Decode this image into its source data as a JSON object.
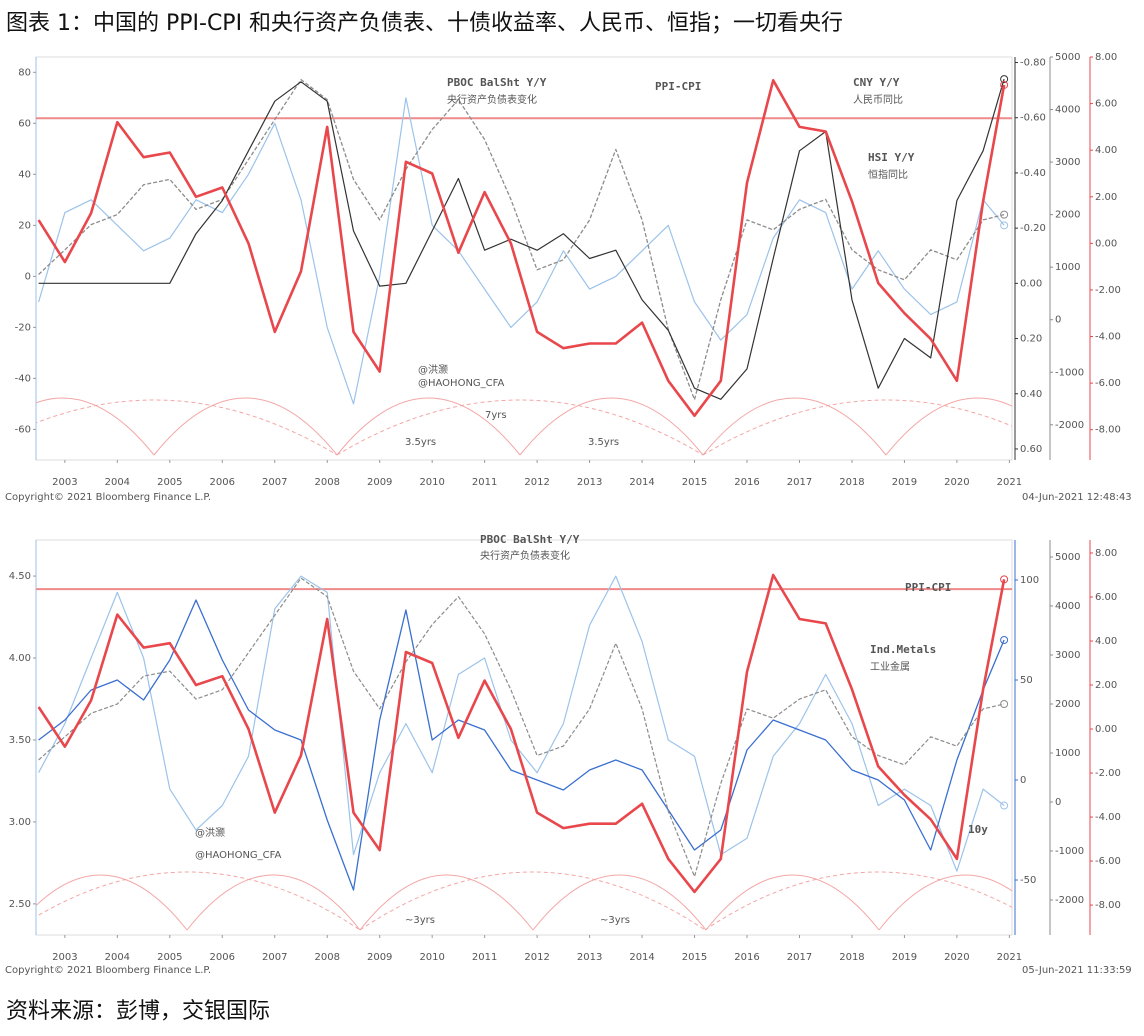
{
  "title": "图表 1：中国的 PPI-CPI 和央行资产负债表、十债收益率、人民币、恒指；一切看央行",
  "source": "资料来源：彭博，交银国际",
  "chart_data": [
    {
      "type": "line",
      "x": [
        2003,
        2003.5,
        2004,
        2004.5,
        2005,
        2005.5,
        2006,
        2006.5,
        2007,
        2007.5,
        2008,
        2008.5,
        2009,
        2009.5,
        2010,
        2010.5,
        2011,
        2011.5,
        2012,
        2012.5,
        2013,
        2013.5,
        2014,
        2014.5,
        2015,
        2015.5,
        2016,
        2016.5,
        2017,
        2017.5,
        2018,
        2018.5,
        2019,
        2019.5,
        2020,
        2020.5,
        2021,
        2021.4
      ],
      "xlim": [
        2002.95,
        2021.55
      ],
      "xticks": [
        {
          "value": 2003.5,
          "label": "2003"
        },
        {
          "value": 2004.5,
          "label": "2004"
        },
        {
          "value": 2005.5,
          "label": "2005"
        },
        {
          "value": 2006.5,
          "label": "2006"
        },
        {
          "value": 2007.5,
          "label": "2007"
        },
        {
          "value": 2008.5,
          "label": "2008"
        },
        {
          "value": 2009.5,
          "label": "2009"
        },
        {
          "value": 2010.5,
          "label": "2010"
        },
        {
          "value": 2011.5,
          "label": "2011"
        },
        {
          "value": 2012.5,
          "label": "2012"
        },
        {
          "value": 2013.5,
          "label": "2013"
        },
        {
          "value": 2014.5,
          "label": "2014"
        },
        {
          "value": 2015.5,
          "label": "2015"
        },
        {
          "value": 2016.5,
          "label": "2016"
        },
        {
          "value": 2017.5,
          "label": "2017"
        },
        {
          "value": 2018.5,
          "label": "2018"
        },
        {
          "value": 2019.5,
          "label": "2019"
        },
        {
          "value": 2020.5,
          "label": "2020"
        },
        {
          "value": 2021.5,
          "label": "2021"
        }
      ],
      "ylim": [
        -72,
        86
      ],
      "yticks": [
        -60,
        -40,
        -20,
        0,
        20,
        40,
        60,
        80
      ],
      "y2lim": [
        0.64,
        -0.82
      ],
      "y2ticks": [
        {
          "value": -0.8,
          "label": "-0.80"
        },
        {
          "value": -0.6,
          "label": "-0.60"
        },
        {
          "value": -0.4,
          "label": "-0.40"
        },
        {
          "value": -0.2,
          "label": "-0.20"
        },
        {
          "value": 0,
          "label": "0.00"
        },
        {
          "value": 0.2,
          "label": "0.20"
        },
        {
          "value": 0.4,
          "label": "0.40"
        },
        {
          "value": 0.6,
          "label": "0.60"
        }
      ],
      "y3lim": [
        -2670,
        5000
      ],
      "y3ticks": [
        5000,
        4000,
        3000,
        2000,
        1000,
        0,
        -1000,
        -2000
      ],
      "y4lim": [
        -9.3,
        8
      ],
      "y4ticks": [
        {
          "value": 8,
          "label": "8.00"
        },
        {
          "value": 6,
          "label": "6.00"
        },
        {
          "value": 4,
          "label": "4.00"
        },
        {
          "value": 2,
          "label": "2.00"
        },
        {
          "value": 0,
          "label": "0.00"
        },
        {
          "value": -2,
          "label": "-2.00"
        },
        {
          "value": -4,
          "label": "-4.00"
        },
        {
          "value": -6,
          "label": "-6.00"
        },
        {
          "value": -8,
          "label": "-8.00"
        }
      ],
      "reference_line": {
        "value": 62,
        "color": "#f08a8a"
      },
      "series": [
        {
          "name": "HSI Y/Y",
          "color": "#9cc3ea",
          "axis": "y",
          "values": [
            -10,
            25,
            30,
            20,
            10,
            15,
            30,
            25,
            40,
            60,
            30,
            -20,
            -50,
            0,
            70,
            20,
            10,
            -5,
            -20,
            -10,
            10,
            -5,
            0,
            10,
            20,
            -10,
            -25,
            -15,
            15,
            30,
            25,
            -5,
            10,
            -5,
            -15,
            -10,
            30,
            20
          ]
        },
        {
          "name": "PBOC BalSht Y/Y",
          "color": "#8c8c8c",
          "axis": "y3",
          "style": "dashed",
          "values": [
            860,
            1330,
            1810,
            2000,
            2570,
            2670,
            2100,
            2290,
            3050,
            3810,
            4570,
            4190,
            2670,
            1900,
            2860,
            3620,
            4190,
            3430,
            2290,
            950,
            1140,
            1900,
            3240,
            1900,
            -190,
            -1520,
            380,
            1900,
            1710,
            2100,
            2290,
            1330,
            950,
            760,
            1330,
            1140,
            1900,
            2000
          ]
        },
        {
          "name": "CNY Y/Y",
          "color": "#333333",
          "axis": "y2",
          "values": [
            0,
            0,
            0,
            0,
            0,
            0,
            -0.18,
            -0.3,
            -0.48,
            -0.66,
            -0.73,
            -0.66,
            -0.19,
            0.01,
            0,
            -0.19,
            -0.38,
            -0.12,
            -0.16,
            -0.12,
            -0.18,
            -0.09,
            -0.12,
            0.06,
            0.17,
            0.38,
            0.42,
            0.31,
            -0.09,
            -0.48,
            -0.55,
            0.06,
            0.38,
            0.2,
            0.27,
            -0.3,
            -0.48,
            -0.74
          ]
        },
        {
          "name": "PPI-CPI",
          "color": "#e8474c",
          "axis": "y4",
          "values": [
            1.0,
            -0.8,
            1.3,
            5.2,
            3.7,
            3.9,
            2.0,
            2.4,
            0,
            -3.8,
            -1.2,
            5.0,
            -3.8,
            -5.5,
            3.5,
            3.0,
            -0.4,
            2.2,
            0,
            -3.8,
            -4.5,
            -4.3,
            -4.3,
            -3.4,
            -5.9,
            -7.4,
            -5.9,
            2.6,
            7.0,
            5.0,
            4.8,
            1.8,
            -1.7,
            -3.0,
            -4.1,
            -5.9,
            1.8,
            6.8
          ]
        }
      ],
      "annotations": [
        "央行资产负债表变化",
        "人民币同比",
        "恒指同比",
        "@洪灏",
        "@HAOHONG_CFA",
        "7yrs",
        "3.5yrs",
        "3.5yrs",
        "Copyright© 2021 Bloomberg Finance L.P.",
        "04-Jun-2021 12:48:43"
      ]
    },
    {
      "type": "line",
      "x": [
        2003,
        2003.5,
        2004,
        2004.5,
        2005,
        2005.5,
        2006,
        2006.5,
        2007,
        2007.5,
        2008,
        2008.5,
        2009,
        2009.5,
        2010,
        2010.5,
        2011,
        2011.5,
        2012,
        2012.5,
        2013,
        2013.5,
        2014,
        2014.5,
        2015,
        2015.5,
        2016,
        2016.5,
        2017,
        2017.5,
        2018,
        2018.5,
        2019,
        2019.5,
        2020,
        2020.5,
        2021,
        2021.4
      ],
      "xlim": [
        2002.95,
        2021.55
      ],
      "xticks": [
        {
          "value": 2003.5,
          "label": "2003"
        },
        {
          "value": 2004.5,
          "label": "2004"
        },
        {
          "value": 2005.5,
          "label": "2005"
        },
        {
          "value": 2006.5,
          "label": "2006"
        },
        {
          "value": 2007.5,
          "label": "2007"
        },
        {
          "value": 2008.5,
          "label": "2008"
        },
        {
          "value": 2009.5,
          "label": "2009"
        },
        {
          "value": 2010.5,
          "label": "2010"
        },
        {
          "value": 2011.5,
          "label": "2011"
        },
        {
          "value": 2012.5,
          "label": "2012"
        },
        {
          "value": 2013.5,
          "label": "2013"
        },
        {
          "value": 2014.5,
          "label": "2014"
        },
        {
          "value": 2015.5,
          "label": "2015"
        },
        {
          "value": 2016.5,
          "label": "2016"
        },
        {
          "value": 2017.5,
          "label": "2017"
        },
        {
          "value": 2018.5,
          "label": "2018"
        },
        {
          "value": 2019.5,
          "label": "2019"
        },
        {
          "value": 2020.5,
          "label": "2020"
        },
        {
          "value": 2021.5,
          "label": "2021"
        }
      ],
      "ylim": [
        2.31,
        4.72
      ],
      "yticks": [
        {
          "value": 2.5,
          "label": "2.50"
        },
        {
          "value": 3,
          "label": "3.00"
        },
        {
          "value": 3.5,
          "label": "3.50"
        },
        {
          "value": 4,
          "label": "4.00"
        },
        {
          "value": 4.5,
          "label": "4.50"
        }
      ],
      "y2lim": [
        -77.5,
        120
      ],
      "y2ticks": [
        100,
        50,
        0,
        -50
      ],
      "y3lim": [
        -2714,
        5347
      ],
      "y3ticks": [
        5000,
        4000,
        3000,
        2000,
        1000,
        0,
        -1000,
        -2000
      ],
      "y4lim": [
        -9.36,
        8.59
      ],
      "y4ticks": [
        {
          "value": 8,
          "label": "8.00"
        },
        {
          "value": 6,
          "label": "6.00"
        },
        {
          "value": 4,
          "label": "4.00"
        },
        {
          "value": 2,
          "label": "2.00"
        },
        {
          "value": 0,
          "label": "0.00"
        },
        {
          "value": -2,
          "label": "-2.00"
        },
        {
          "value": -4,
          "label": "-4.00"
        },
        {
          "value": -6,
          "label": "-6.00"
        },
        {
          "value": -8,
          "label": "-8.00"
        }
      ],
      "reference_line": {
        "value": 4.42,
        "color": "#f08a8a"
      },
      "series": [
        {
          "name": "10y",
          "color": "#9cc3ea",
          "axis": "y",
          "values": [
            3.3,
            3.6,
            4.0,
            4.4,
            4.0,
            3.2,
            2.95,
            3.1,
            3.4,
            4.3,
            4.5,
            4.4,
            2.8,
            3.3,
            3.6,
            3.3,
            3.9,
            4.0,
            3.5,
            3.3,
            3.6,
            4.2,
            4.5,
            4.1,
            3.5,
            3.4,
            2.8,
            2.9,
            3.4,
            3.6,
            3.9,
            3.6,
            3.1,
            3.2,
            3.1,
            2.7,
            3.2,
            3.1
          ]
        },
        {
          "name": "Ind.Metals",
          "color": "#3a6fd0",
          "axis": "y2",
          "values": [
            20,
            30,
            45,
            50,
            40,
            60,
            90,
            60,
            35,
            25,
            20,
            -20,
            -55,
            30,
            85,
            20,
            30,
            25,
            5,
            0,
            -5,
            5,
            10,
            5,
            -15,
            -35,
            -25,
            15,
            30,
            25,
            20,
            5,
            0,
            -10,
            -35,
            10,
            45,
            70
          ]
        },
        {
          "name": "PBOC BalSht Y/Y",
          "color": "#8c8c8c",
          "axis": "y3",
          "style": "dashed",
          "values": [
            860,
            1330,
            1810,
            2000,
            2570,
            2670,
            2100,
            2290,
            3050,
            3810,
            4570,
            4190,
            2670,
            1900,
            2860,
            3620,
            4190,
            3430,
            2290,
            950,
            1140,
            1900,
            3240,
            1900,
            -190,
            -1520,
            380,
            1900,
            1710,
            2100,
            2290,
            1330,
            950,
            760,
            1330,
            1140,
            1900,
            2000
          ]
        },
        {
          "name": "PPI-CPI",
          "color": "#e8474c",
          "axis": "y4",
          "values": [
            1.0,
            -0.8,
            1.3,
            5.2,
            3.7,
            3.9,
            2.0,
            2.4,
            0,
            -3.8,
            -1.2,
            5.0,
            -3.8,
            -5.5,
            3.5,
            3.0,
            -0.4,
            2.2,
            0,
            -3.8,
            -4.5,
            -4.3,
            -4.3,
            -3.4,
            -5.9,
            -7.4,
            -5.9,
            2.6,
            7.0,
            5.0,
            4.8,
            1.8,
            -1.7,
            -3.0,
            -4.1,
            -5.9,
            1.8,
            6.8
          ]
        }
      ],
      "annotations": [
        "央行资产负债表变化",
        "工业金属",
        "@洪灏",
        "@HAOHONG_CFA",
        "~3yrs",
        "~3yrs",
        "Copyright© 2021 Bloomberg Finance L.P.",
        "05-Jun-2021 11:33:59"
      ]
    }
  ]
}
